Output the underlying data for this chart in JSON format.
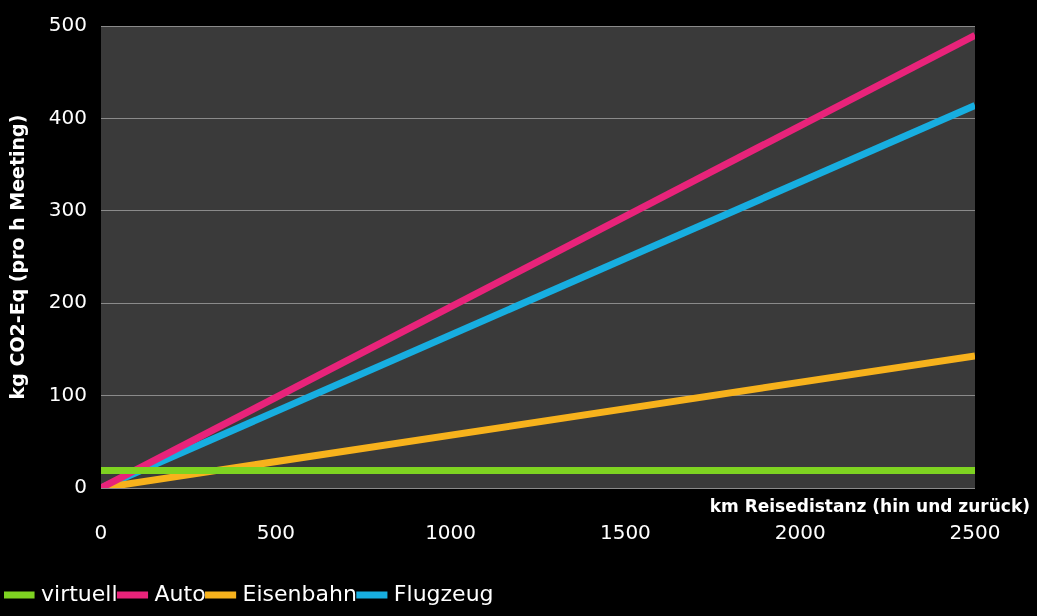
{
  "chart_data": {
    "type": "line",
    "xlabel": "km Reisedistanz (hin und zurück)",
    "ylabel": "kg CO2-Eq (pro h Meeting)",
    "x": [
      0,
      2500
    ],
    "series": [
      {
        "name": "virtuell",
        "color": "#7ed321",
        "values": [
          19,
          19
        ]
      },
      {
        "name": "Auto",
        "color": "#e8237a",
        "values": [
          0,
          490
        ]
      },
      {
        "name": "Eisenbahn",
        "color": "#f7b21c",
        "values": [
          0,
          143
        ]
      },
      {
        "name": "Flugzeug",
        "color": "#17aee0",
        "values": [
          0,
          414
        ]
      }
    ],
    "xlim": [
      0,
      2500
    ],
    "xticks": [
      0,
      500,
      1000,
      1500,
      2000,
      2500
    ],
    "ylim": [
      0,
      500
    ],
    "yticks": [
      0,
      100,
      200,
      300,
      400,
      500
    ],
    "grid": "y",
    "legend": "bottom",
    "marker": "none",
    "line_style": "solid"
  }
}
